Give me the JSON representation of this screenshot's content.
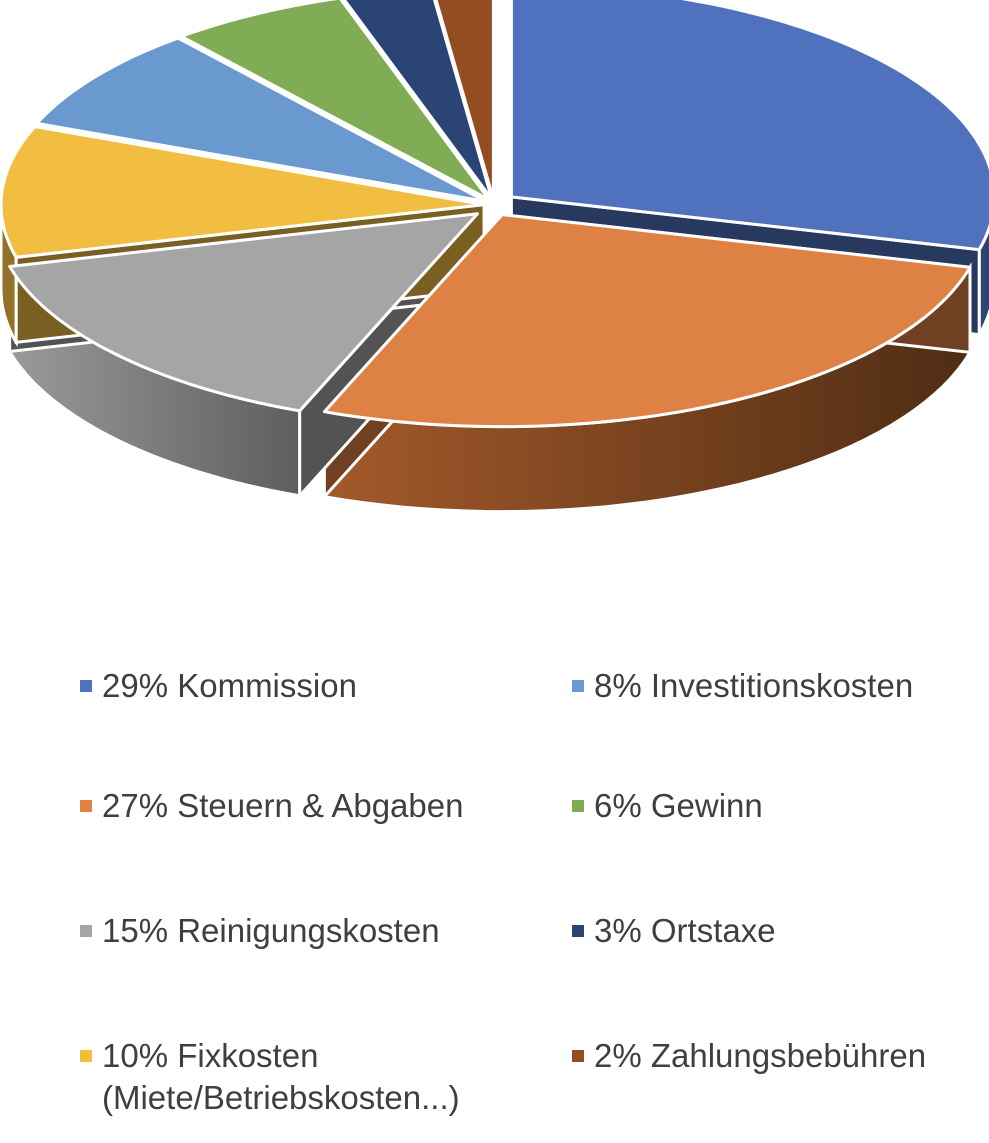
{
  "chart_data": {
    "type": "pie",
    "style": "3d-exploded",
    "series": [
      {
        "label": "29% Kommission",
        "value": 29,
        "color": "#4f71be"
      },
      {
        "label": "27% Steuern & Abgaben",
        "value": 27,
        "color": "#dd8144"
      },
      {
        "label": "15% Reinigungskosten",
        "value": 15,
        "color": "#a5a5a5"
      },
      {
        "label": "10% Fixkosten\n(Miete/Betriebskosten...)",
        "value": 10,
        "color": "#f2be42"
      },
      {
        "label": "8% Investitionskosten",
        "value": 8,
        "color": "#6a99d0"
      },
      {
        "label": "6% Gewinn",
        "value": 6,
        "color": "#7fac55"
      },
      {
        "label": "3% Ortstaxe",
        "value": 3,
        "color": "#2a4475"
      },
      {
        "label": "2% Zahlungsbebühren",
        "value": 2,
        "color": "#944d20"
      }
    ],
    "legend_position": "bottom"
  }
}
